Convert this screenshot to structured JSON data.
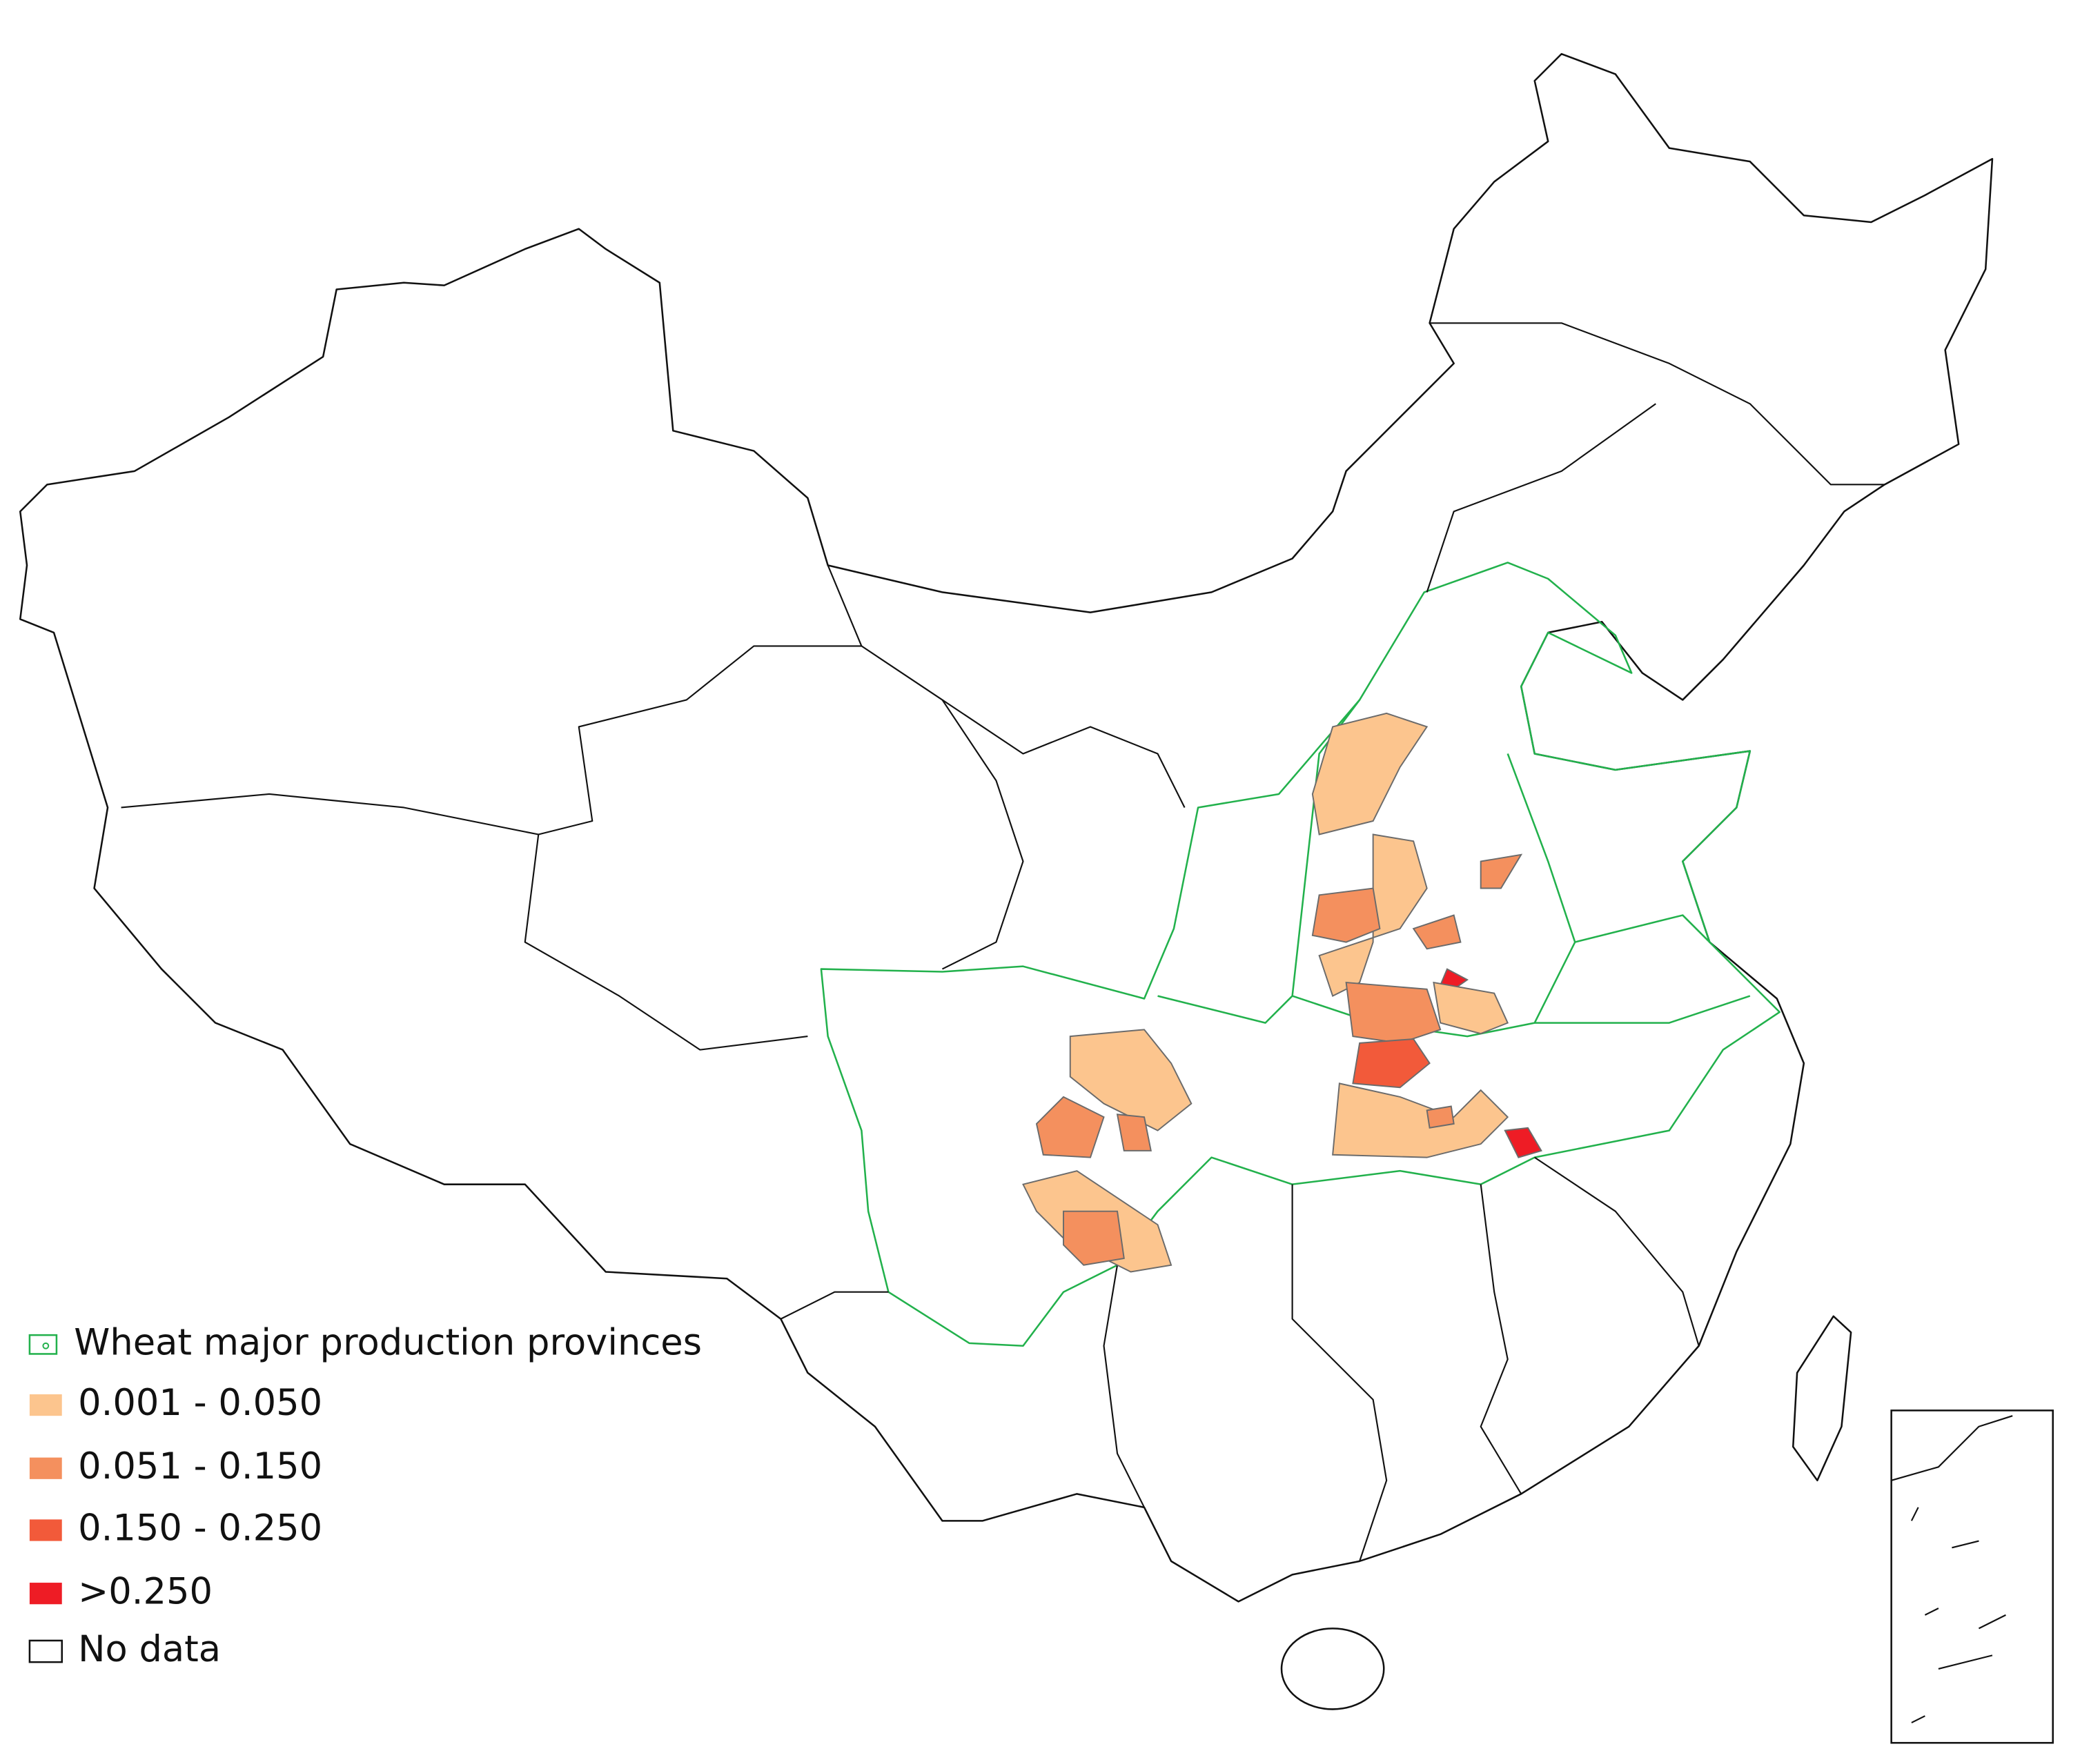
{
  "legend": {
    "items": [
      {
        "label": "Wheat major production provinces",
        "color": "#22b14c"
      },
      {
        "label": "0.001 - 0.050",
        "color": "#fcc58e"
      },
      {
        "label": "0.051 - 0.150",
        "color": "#f4905e"
      },
      {
        "label": "0.150 - 0.250",
        "color": "#f25a3a"
      },
      {
        "label": ">0.250",
        "color": "#ee1c25"
      },
      {
        "label": "No data",
        "color": "#ffffff"
      }
    ]
  }
}
